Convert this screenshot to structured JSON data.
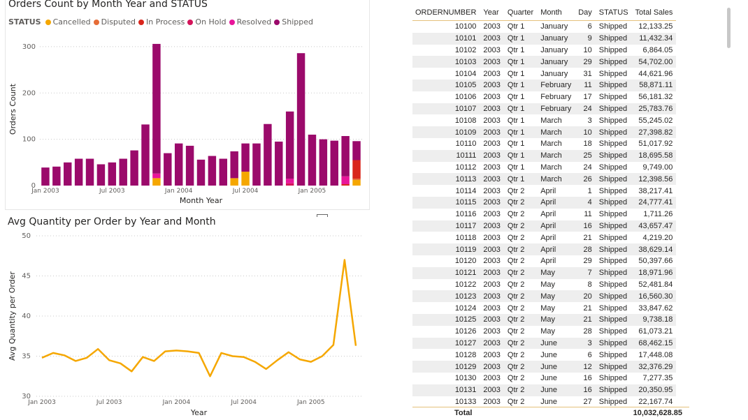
{
  "bar_chart": {
    "title": "Orders Count by Month Year and STATUS",
    "legend_title": "STATUS",
    "colors": {
      "Cancelled": "#f5a700",
      "Disputed": "#e66c37",
      "In Process": "#d9261c",
      "On Hold": "#d4145a",
      "Resolved": "#e8169a",
      "Shipped": "#9b0a6b"
    }
  },
  "line_chart": {
    "title": "Avg Quantity per Order by Year and Month",
    "color": "#f5a700"
  },
  "chart_data": [
    {
      "type": "bar",
      "stacked": true,
      "title": "Orders Count by Month Year and STATUS",
      "xlabel": "Month Year",
      "ylabel": "Orders Count",
      "ylim": [
        0,
        330
      ],
      "yticks": [
        0,
        100,
        200,
        300
      ],
      "xtick_labels": [
        "Jan 2003",
        "Jul 2003",
        "Jan 2004",
        "Jul 2004",
        "Jan 2005"
      ],
      "xtick_indices": [
        0,
        6,
        12,
        18,
        24
      ],
      "categories": [
        "2003-01",
        "2003-02",
        "2003-03",
        "2003-04",
        "2003-05",
        "2003-06",
        "2003-07",
        "2003-08",
        "2003-09",
        "2003-10",
        "2003-11",
        "2003-12",
        "2004-01",
        "2004-02",
        "2004-03",
        "2004-04",
        "2004-05",
        "2004-06",
        "2004-07",
        "2004-08",
        "2004-09",
        "2004-10",
        "2004-11",
        "2004-12",
        "2005-01",
        "2005-02",
        "2005-03",
        "2005-04",
        "2005-05"
      ],
      "legend_position": "top-left",
      "series": [
        {
          "name": "Cancelled",
          "values": [
            0,
            0,
            0,
            0,
            0,
            0,
            0,
            0,
            0,
            0,
            16,
            0,
            0,
            0,
            0,
            0,
            0,
            16,
            30,
            0,
            0,
            0,
            0,
            0,
            0,
            0,
            0,
            0,
            12
          ]
        },
        {
          "name": "Disputed",
          "values": [
            0,
            0,
            0,
            0,
            0,
            0,
            0,
            0,
            0,
            0,
            0,
            0,
            0,
            0,
            0,
            0,
            0,
            0,
            0,
            0,
            0,
            0,
            0,
            0,
            0,
            0,
            0,
            0,
            3
          ]
        },
        {
          "name": "In Process",
          "values": [
            0,
            0,
            0,
            0,
            0,
            0,
            0,
            0,
            0,
            0,
            0,
            0,
            0,
            0,
            0,
            0,
            0,
            0,
            0,
            0,
            0,
            0,
            0,
            0,
            0,
            0,
            0,
            3,
            40
          ]
        },
        {
          "name": "On Hold",
          "values": [
            0,
            0,
            0,
            0,
            0,
            0,
            0,
            0,
            0,
            0,
            0,
            0,
            0,
            0,
            0,
            0,
            0,
            0,
            0,
            0,
            0,
            0,
            5,
            0,
            0,
            0,
            0,
            0,
            0
          ]
        },
        {
          "name": "Resolved",
          "values": [
            0,
            0,
            0,
            0,
            0,
            0,
            0,
            0,
            0,
            0,
            10,
            0,
            0,
            0,
            0,
            0,
            0,
            0,
            0,
            0,
            0,
            0,
            10,
            0,
            0,
            0,
            0,
            17,
            0
          ]
        },
        {
          "name": "Shipped",
          "values": [
            39,
            41,
            50,
            58,
            58,
            46,
            50,
            58,
            76,
            132,
            280,
            70,
            91,
            86,
            56,
            64,
            58,
            58,
            61,
            91,
            133,
            95,
            145,
            286,
            110,
            100,
            97,
            87,
            41
          ]
        }
      ]
    },
    {
      "type": "line",
      "title": "Avg Quantity per Order by Year and Month",
      "xlabel": "Year",
      "ylabel": "Avg Quantity per Order",
      "ylim": [
        30,
        50
      ],
      "yticks": [
        30,
        35,
        40,
        45,
        50
      ],
      "xtick_labels": [
        "Jan 2003",
        "Jul 2003",
        "Jan 2004",
        "Jul 2004",
        "Jan 2005"
      ],
      "xtick_indices": [
        0,
        6,
        12,
        18,
        24
      ],
      "x": [
        "2003-01",
        "2003-02",
        "2003-03",
        "2003-04",
        "2003-05",
        "2003-06",
        "2003-07",
        "2003-08",
        "2003-09",
        "2003-10",
        "2003-11",
        "2003-12",
        "2004-01",
        "2004-02",
        "2004-03",
        "2004-04",
        "2004-05",
        "2004-06",
        "2004-07",
        "2004-08",
        "2004-09",
        "2004-10",
        "2004-11",
        "2004-12",
        "2005-01",
        "2005-02",
        "2005-03",
        "2005-04",
        "2005-05"
      ],
      "values": [
        34.8,
        35.4,
        35.1,
        34.4,
        34.8,
        35.9,
        34.5,
        34.1,
        33.1,
        34.9,
        34.4,
        35.6,
        35.7,
        35.6,
        35.4,
        32.5,
        35.4,
        35.0,
        34.9,
        34.3,
        33.4,
        34.5,
        35.5,
        34.6,
        34.3,
        35.0,
        36.4,
        47.0,
        36.3
      ],
      "grid": true
    }
  ],
  "table": {
    "headers": [
      "ORDERNUMBER",
      "Year",
      "Quarter",
      "Month",
      "Day",
      "STATUS",
      "Total Sales"
    ],
    "rows": [
      [
        "10100",
        "2003",
        "Qtr 1",
        "January",
        "6",
        "Shipped",
        "12,133.25"
      ],
      [
        "10101",
        "2003",
        "Qtr 1",
        "January",
        "9",
        "Shipped",
        "11,432.34"
      ],
      [
        "10102",
        "2003",
        "Qtr 1",
        "January",
        "10",
        "Shipped",
        "6,864.05"
      ],
      [
        "10103",
        "2003",
        "Qtr 1",
        "January",
        "29",
        "Shipped",
        "54,702.00"
      ],
      [
        "10104",
        "2003",
        "Qtr 1",
        "January",
        "31",
        "Shipped",
        "44,621.96"
      ],
      [
        "10105",
        "2003",
        "Qtr 1",
        "February",
        "11",
        "Shipped",
        "58,871.11"
      ],
      [
        "10106",
        "2003",
        "Qtr 1",
        "February",
        "17",
        "Shipped",
        "56,181.32"
      ],
      [
        "10107",
        "2003",
        "Qtr 1",
        "February",
        "24",
        "Shipped",
        "25,783.76"
      ],
      [
        "10108",
        "2003",
        "Qtr 1",
        "March",
        "3",
        "Shipped",
        "55,245.02"
      ],
      [
        "10109",
        "2003",
        "Qtr 1",
        "March",
        "10",
        "Shipped",
        "27,398.82"
      ],
      [
        "10110",
        "2003",
        "Qtr 1",
        "March",
        "18",
        "Shipped",
        "51,017.92"
      ],
      [
        "10111",
        "2003",
        "Qtr 1",
        "March",
        "25",
        "Shipped",
        "18,695.58"
      ],
      [
        "10112",
        "2003",
        "Qtr 1",
        "March",
        "24",
        "Shipped",
        "9,749.00"
      ],
      [
        "10113",
        "2003",
        "Qtr 1",
        "March",
        "26",
        "Shipped",
        "12,398.56"
      ],
      [
        "10114",
        "2003",
        "Qtr 2",
        "April",
        "1",
        "Shipped",
        "38,217.41"
      ],
      [
        "10115",
        "2003",
        "Qtr 2",
        "April",
        "4",
        "Shipped",
        "24,777.41"
      ],
      [
        "10116",
        "2003",
        "Qtr 2",
        "April",
        "11",
        "Shipped",
        "1,711.26"
      ],
      [
        "10117",
        "2003",
        "Qtr 2",
        "April",
        "16",
        "Shipped",
        "43,657.47"
      ],
      [
        "10118",
        "2003",
        "Qtr 2",
        "April",
        "21",
        "Shipped",
        "4,219.20"
      ],
      [
        "10119",
        "2003",
        "Qtr 2",
        "April",
        "28",
        "Shipped",
        "38,629.14"
      ],
      [
        "10120",
        "2003",
        "Qtr 2",
        "April",
        "29",
        "Shipped",
        "50,397.66"
      ],
      [
        "10121",
        "2003",
        "Qtr 2",
        "May",
        "7",
        "Shipped",
        "18,971.96"
      ],
      [
        "10122",
        "2003",
        "Qtr 2",
        "May",
        "8",
        "Shipped",
        "52,481.84"
      ],
      [
        "10123",
        "2003",
        "Qtr 2",
        "May",
        "20",
        "Shipped",
        "16,560.30"
      ],
      [
        "10124",
        "2003",
        "Qtr 2",
        "May",
        "21",
        "Shipped",
        "33,847.62"
      ],
      [
        "10125",
        "2003",
        "Qtr 2",
        "May",
        "21",
        "Shipped",
        "9,738.18"
      ],
      [
        "10126",
        "2003",
        "Qtr 2",
        "May",
        "28",
        "Shipped",
        "61,073.21"
      ],
      [
        "10127",
        "2003",
        "Qtr 2",
        "June",
        "3",
        "Shipped",
        "68,462.15"
      ],
      [
        "10128",
        "2003",
        "Qtr 2",
        "June",
        "6",
        "Shipped",
        "17,448.08"
      ],
      [
        "10129",
        "2003",
        "Qtr 2",
        "June",
        "12",
        "Shipped",
        "32,376.29"
      ],
      [
        "10130",
        "2003",
        "Qtr 2",
        "June",
        "16",
        "Shipped",
        "7,277.35"
      ],
      [
        "10131",
        "2003",
        "Qtr 2",
        "June",
        "16",
        "Shipped",
        "20,350.95"
      ],
      [
        "10133",
        "2003",
        "Qtr 2",
        "June",
        "27",
        "Shipped",
        "22,167.74"
      ]
    ],
    "total_label": "Total",
    "total_value": "10,032,628.85"
  }
}
